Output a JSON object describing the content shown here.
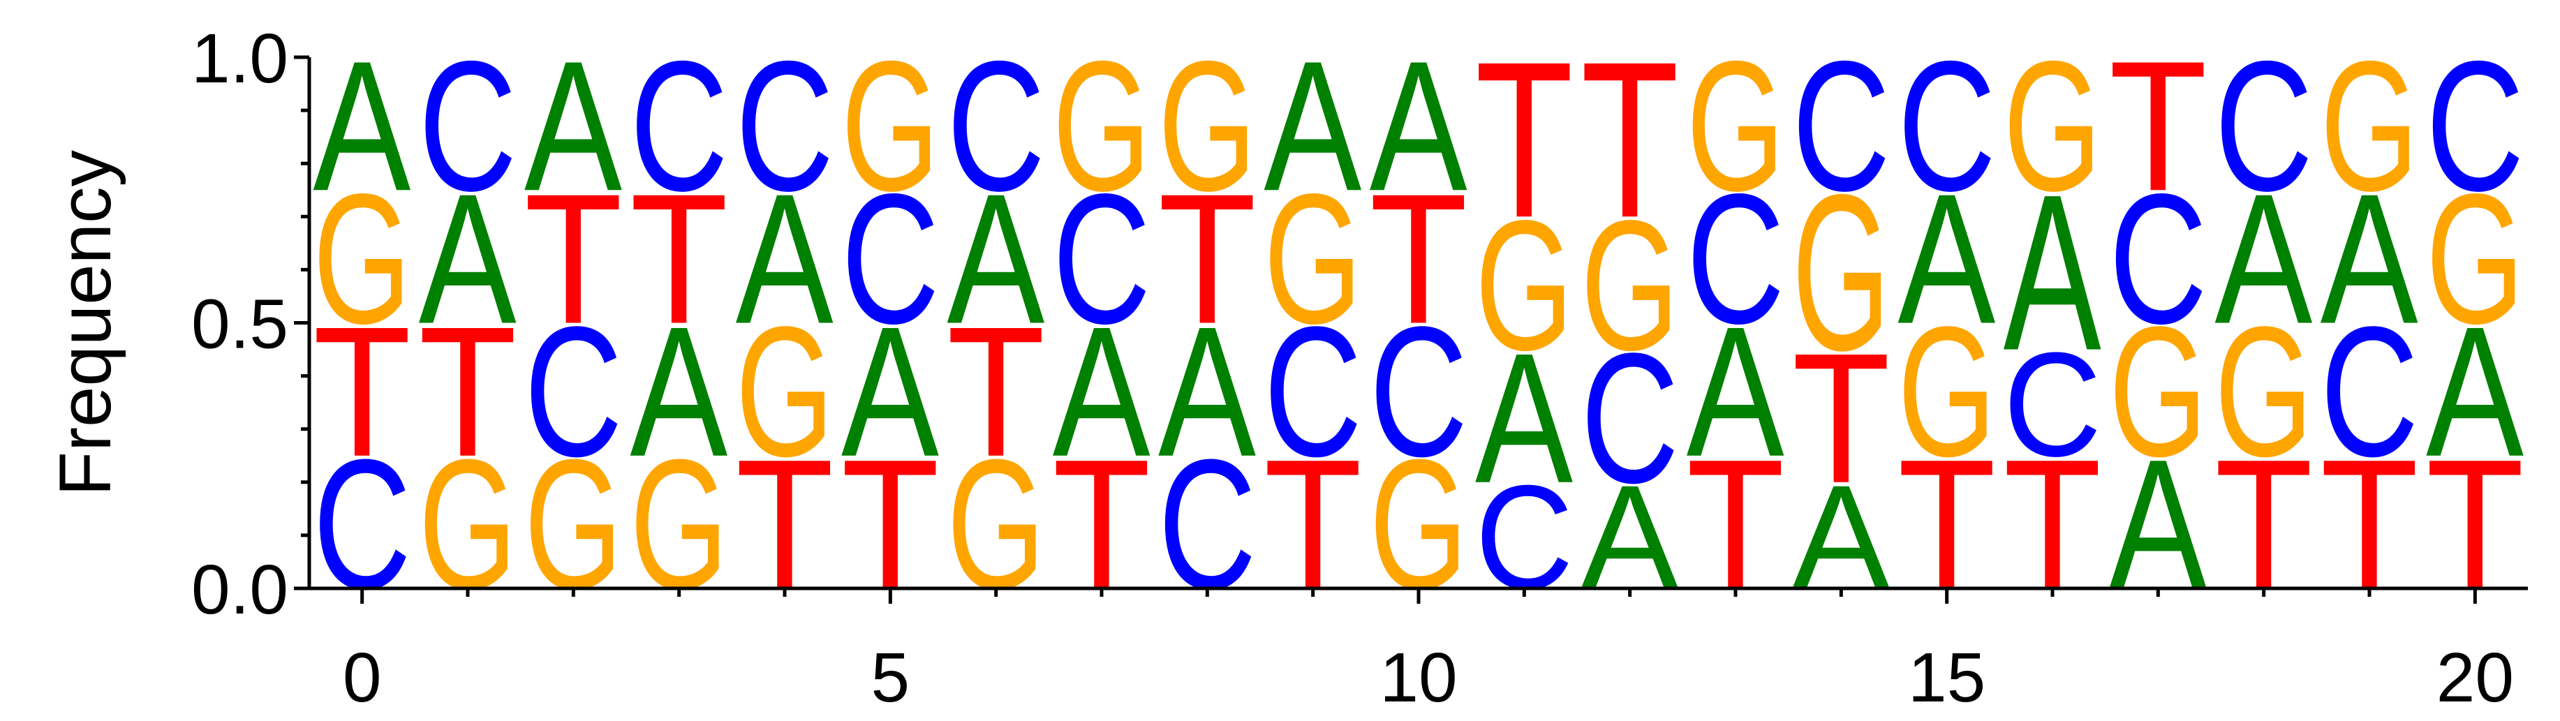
{
  "chart_data": {
    "type": "sequence-logo",
    "ylabel": "Frequency",
    "xlabel": "",
    "title": "",
    "xlim": [
      -0.5,
      20.5
    ],
    "ylim": [
      0,
      1
    ],
    "x_ticks": [
      0,
      5,
      10,
      15,
      20
    ],
    "x_tick_labels": [
      "0",
      "5",
      "10",
      "15",
      "20"
    ],
    "y_ticks": [
      0,
      0.5,
      1
    ],
    "y_tick_labels": [
      "0.0",
      "0.5",
      "1.0"
    ],
    "letter_colors": {
      "A": "#008000",
      "C": "#0000ff",
      "G": "#ffa500",
      "T": "#ff0000"
    },
    "positions": [
      {
        "pos": 0,
        "stack": [
          {
            "letter": "C",
            "value": 0.25
          },
          {
            "letter": "T",
            "value": 0.25
          },
          {
            "letter": "G",
            "value": 0.25
          },
          {
            "letter": "A",
            "value": 0.25
          }
        ]
      },
      {
        "pos": 1,
        "stack": [
          {
            "letter": "G",
            "value": 0.25
          },
          {
            "letter": "T",
            "value": 0.25
          },
          {
            "letter": "A",
            "value": 0.25
          },
          {
            "letter": "C",
            "value": 0.25
          }
        ]
      },
      {
        "pos": 2,
        "stack": [
          {
            "letter": "G",
            "value": 0.25
          },
          {
            "letter": "C",
            "value": 0.25
          },
          {
            "letter": "T",
            "value": 0.25
          },
          {
            "letter": "A",
            "value": 0.25
          }
        ]
      },
      {
        "pos": 3,
        "stack": [
          {
            "letter": "G",
            "value": 0.25
          },
          {
            "letter": "A",
            "value": 0.25
          },
          {
            "letter": "T",
            "value": 0.25
          },
          {
            "letter": "C",
            "value": 0.25
          }
        ]
      },
      {
        "pos": 4,
        "stack": [
          {
            "letter": "T",
            "value": 0.25
          },
          {
            "letter": "G",
            "value": 0.25
          },
          {
            "letter": "A",
            "value": 0.25
          },
          {
            "letter": "C",
            "value": 0.25
          }
        ]
      },
      {
        "pos": 5,
        "stack": [
          {
            "letter": "T",
            "value": 0.25
          },
          {
            "letter": "A",
            "value": 0.25
          },
          {
            "letter": "C",
            "value": 0.25
          },
          {
            "letter": "G",
            "value": 0.25
          }
        ]
      },
      {
        "pos": 6,
        "stack": [
          {
            "letter": "G",
            "value": 0.25
          },
          {
            "letter": "T",
            "value": 0.25
          },
          {
            "letter": "A",
            "value": 0.25
          },
          {
            "letter": "C",
            "value": 0.25
          }
        ]
      },
      {
        "pos": 7,
        "stack": [
          {
            "letter": "T",
            "value": 0.25
          },
          {
            "letter": "A",
            "value": 0.25
          },
          {
            "letter": "C",
            "value": 0.25
          },
          {
            "letter": "G",
            "value": 0.25
          }
        ]
      },
      {
        "pos": 8,
        "stack": [
          {
            "letter": "C",
            "value": 0.25
          },
          {
            "letter": "A",
            "value": 0.25
          },
          {
            "letter": "T",
            "value": 0.25
          },
          {
            "letter": "G",
            "value": 0.25
          }
        ]
      },
      {
        "pos": 9,
        "stack": [
          {
            "letter": "T",
            "value": 0.25
          },
          {
            "letter": "C",
            "value": 0.25
          },
          {
            "letter": "G",
            "value": 0.25
          },
          {
            "letter": "A",
            "value": 0.25
          }
        ]
      },
      {
        "pos": 10,
        "stack": [
          {
            "letter": "G",
            "value": 0.25
          },
          {
            "letter": "C",
            "value": 0.25
          },
          {
            "letter": "T",
            "value": 0.25
          },
          {
            "letter": "A",
            "value": 0.25
          }
        ]
      },
      {
        "pos": 11,
        "stack": [
          {
            "letter": "C",
            "value": 0.2
          },
          {
            "letter": "A",
            "value": 0.25
          },
          {
            "letter": "G",
            "value": 0.25
          },
          {
            "letter": "T",
            "value": 0.3
          }
        ]
      },
      {
        "pos": 12,
        "stack": [
          {
            "letter": "A",
            "value": 0.2
          },
          {
            "letter": "C",
            "value": 0.25
          },
          {
            "letter": "G",
            "value": 0.25
          },
          {
            "letter": "T",
            "value": 0.3
          }
        ]
      },
      {
        "pos": 13,
        "stack": [
          {
            "letter": "T",
            "value": 0.25
          },
          {
            "letter": "A",
            "value": 0.25
          },
          {
            "letter": "C",
            "value": 0.25
          },
          {
            "letter": "G",
            "value": 0.25
          }
        ]
      },
      {
        "pos": 14,
        "stack": [
          {
            "letter": "A",
            "value": 0.2
          },
          {
            "letter": "T",
            "value": 0.25
          },
          {
            "letter": "G",
            "value": 0.3
          },
          {
            "letter": "C",
            "value": 0.25
          }
        ]
      },
      {
        "pos": 15,
        "stack": [
          {
            "letter": "T",
            "value": 0.25
          },
          {
            "letter": "G",
            "value": 0.25
          },
          {
            "letter": "A",
            "value": 0.25
          },
          {
            "letter": "C",
            "value": 0.25
          }
        ]
      },
      {
        "pos": 16,
        "stack": [
          {
            "letter": "T",
            "value": 0.25
          },
          {
            "letter": "C",
            "value": 0.2
          },
          {
            "letter": "A",
            "value": 0.3
          },
          {
            "letter": "G",
            "value": 0.25
          }
        ]
      },
      {
        "pos": 17,
        "stack": [
          {
            "letter": "A",
            "value": 0.25
          },
          {
            "letter": "G",
            "value": 0.25
          },
          {
            "letter": "C",
            "value": 0.25
          },
          {
            "letter": "T",
            "value": 0.25
          }
        ]
      },
      {
        "pos": 18,
        "stack": [
          {
            "letter": "T",
            "value": 0.25
          },
          {
            "letter": "G",
            "value": 0.25
          },
          {
            "letter": "A",
            "value": 0.25
          },
          {
            "letter": "C",
            "value": 0.25
          }
        ]
      },
      {
        "pos": 19,
        "stack": [
          {
            "letter": "T",
            "value": 0.25
          },
          {
            "letter": "C",
            "value": 0.25
          },
          {
            "letter": "A",
            "value": 0.25
          },
          {
            "letter": "G",
            "value": 0.25
          }
        ]
      },
      {
        "pos": 20,
        "stack": [
          {
            "letter": "T",
            "value": 0.25
          },
          {
            "letter": "A",
            "value": 0.25
          },
          {
            "letter": "G",
            "value": 0.25
          },
          {
            "letter": "C",
            "value": 0.25
          }
        ]
      }
    ]
  }
}
